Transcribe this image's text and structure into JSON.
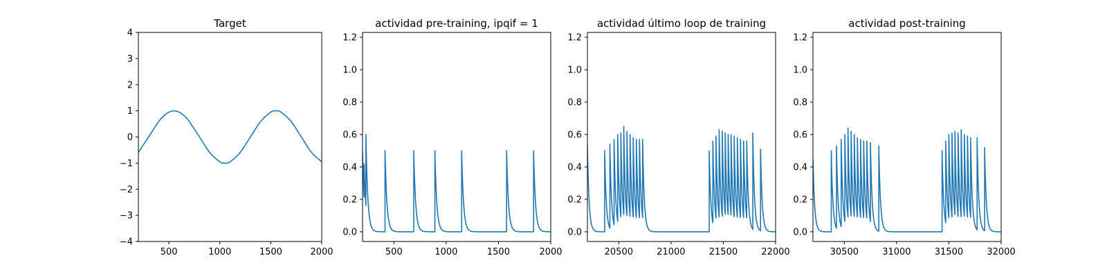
{
  "chart_data": [
    {
      "type": "line",
      "title": "Target",
      "xlabel": "",
      "ylabel": "",
      "xlim": [
        200,
        2000
      ],
      "ylim": [
        -4,
        4
      ],
      "xticks": [
        500,
        1000,
        1500,
        2000
      ],
      "xtick_labels": [
        "500",
        "1000",
        "1500",
        "2000"
      ],
      "yticks": [
        -4,
        -3,
        -2,
        -1,
        0,
        1,
        2,
        3,
        4
      ],
      "ytick_labels": [
        "−4",
        "−3",
        "−2",
        "−1",
        "0",
        "1",
        "2",
        "3",
        "4"
      ],
      "grid": false,
      "series": [
        {
          "color": "#1f77b4",
          "x": [
            200,
            300,
            400,
            450,
            500,
            550,
            600,
            650,
            700,
            800,
            900,
            1000,
            1050,
            1100,
            1200,
            1300,
            1400,
            1500,
            1550,
            1600,
            1700,
            1800,
            1900,
            2000
          ],
          "y": [
            -0.59,
            0.0,
            0.59,
            0.81,
            0.95,
            1.0,
            0.95,
            0.81,
            0.59,
            0.0,
            -0.59,
            -0.95,
            -1.0,
            -0.95,
            -0.59,
            0.0,
            0.59,
            0.95,
            1.0,
            0.95,
            0.59,
            0.0,
            -0.59,
            -0.95
          ]
        }
      ]
    },
    {
      "type": "line",
      "title": "actividad pre-training, ipqif = 1",
      "xlabel": "",
      "ylabel": "",
      "xlim": [
        200,
        2000
      ],
      "ylim": [
        -0.06,
        1.23
      ],
      "xticks": [
        500,
        1000,
        1500,
        2000
      ],
      "xtick_labels": [
        "500",
        "1000",
        "1500",
        "2000"
      ],
      "yticks": [
        0.0,
        0.2,
        0.4,
        0.6,
        0.8,
        1.0,
        1.2
      ],
      "ytick_labels": [
        "0.0",
        "0.2",
        "0.4",
        "0.6",
        "0.8",
        "1.0",
        "1.2"
      ],
      "grid": false,
      "series": [
        {
          "color": "#1f77b4",
          "baseline_start": 0.52,
          "spikes": [
            {
              "t": 215,
              "a": 0.42
            },
            {
              "t": 232,
              "a": 0.6
            },
            {
              "t": 415,
              "a": 0.5
            },
            {
              "t": 690,
              "a": 0.5
            },
            {
              "t": 892,
              "a": 0.5
            },
            {
              "t": 1148,
              "a": 0.5
            },
            {
              "t": 1578,
              "a": 0.5
            },
            {
              "t": 1836,
              "a": 0.5
            }
          ],
          "decay": 18
        }
      ]
    },
    {
      "type": "line",
      "title": "actividad último loop de training",
      "xlabel": "",
      "ylabel": "",
      "xlim": [
        20200,
        22000
      ],
      "ylim": [
        -0.06,
        1.23
      ],
      "xticks": [
        20500,
        21000,
        21500,
        22000
      ],
      "xtick_labels": [
        "20500",
        "21000",
        "21500",
        "22000"
      ],
      "yticks": [
        0.0,
        0.2,
        0.4,
        0.6,
        0.8,
        1.0,
        1.2
      ],
      "ytick_labels": [
        "0.0",
        "0.2",
        "0.4",
        "0.6",
        "0.8",
        "1.0",
        "1.2"
      ],
      "grid": false,
      "series": [
        {
          "color": "#1f77b4",
          "baseline_start": 0.57,
          "spikes": [
            {
              "t": 20365,
              "a": 0.5
            },
            {
              "t": 20415,
              "a": 0.54
            },
            {
              "t": 20455,
              "a": 0.57
            },
            {
              "t": 20490,
              "a": 0.6
            },
            {
              "t": 20520,
              "a": 0.61
            },
            {
              "t": 20548,
              "a": 0.65
            },
            {
              "t": 20578,
              "a": 0.62
            },
            {
              "t": 20608,
              "a": 0.6
            },
            {
              "t": 20638,
              "a": 0.58
            },
            {
              "t": 20668,
              "a": 0.57
            },
            {
              "t": 20698,
              "a": 0.57
            },
            {
              "t": 20728,
              "a": 0.57
            },
            {
              "t": 21365,
              "a": 0.5
            },
            {
              "t": 21400,
              "a": 0.56
            },
            {
              "t": 21430,
              "a": 0.59
            },
            {
              "t": 21460,
              "a": 0.63
            },
            {
              "t": 21490,
              "a": 0.62
            },
            {
              "t": 21518,
              "a": 0.61
            },
            {
              "t": 21546,
              "a": 0.6
            },
            {
              "t": 21574,
              "a": 0.6
            },
            {
              "t": 21604,
              "a": 0.59
            },
            {
              "t": 21634,
              "a": 0.58
            },
            {
              "t": 21664,
              "a": 0.57
            },
            {
              "t": 21694,
              "a": 0.56
            },
            {
              "t": 21724,
              "a": 0.56
            },
            {
              "t": 21782,
              "a": 0.61
            },
            {
              "t": 21856,
              "a": 0.51
            }
          ],
          "decay": 16
        }
      ]
    },
    {
      "type": "line",
      "title": "actividad post-training",
      "xlabel": "",
      "ylabel": "",
      "xlim": [
        30200,
        32000
      ],
      "ylim": [
        -0.06,
        1.23
      ],
      "xticks": [
        30500,
        31000,
        31500,
        32000
      ],
      "xtick_labels": [
        "30500",
        "31000",
        "31500",
        "32000"
      ],
      "yticks": [
        0.0,
        0.2,
        0.4,
        0.6,
        0.8,
        1.0,
        1.2
      ],
      "ytick_labels": [
        "0.0",
        "0.2",
        "0.4",
        "0.6",
        "0.8",
        "1.0",
        "1.2"
      ],
      "grid": false,
      "series": [
        {
          "color": "#1f77b4",
          "baseline_start": 0.48,
          "spikes": [
            {
              "t": 30375,
              "a": 0.5
            },
            {
              "t": 30425,
              "a": 0.53
            },
            {
              "t": 30470,
              "a": 0.57
            },
            {
              "t": 30505,
              "a": 0.6
            },
            {
              "t": 30535,
              "a": 0.64
            },
            {
              "t": 30565,
              "a": 0.62
            },
            {
              "t": 30595,
              "a": 0.6
            },
            {
              "t": 30625,
              "a": 0.58
            },
            {
              "t": 30655,
              "a": 0.57
            },
            {
              "t": 30685,
              "a": 0.56
            },
            {
              "t": 30715,
              "a": 0.56
            },
            {
              "t": 30750,
              "a": 0.55
            },
            {
              "t": 30830,
              "a": 0.53
            },
            {
              "t": 31435,
              "a": 0.5
            },
            {
              "t": 31470,
              "a": 0.56
            },
            {
              "t": 31500,
              "a": 0.6
            },
            {
              "t": 31530,
              "a": 0.61
            },
            {
              "t": 31558,
              "a": 0.62
            },
            {
              "t": 31588,
              "a": 0.61
            },
            {
              "t": 31618,
              "a": 0.63
            },
            {
              "t": 31648,
              "a": 0.6
            },
            {
              "t": 31678,
              "a": 0.59
            },
            {
              "t": 31708,
              "a": 0.58
            },
            {
              "t": 31770,
              "a": 0.58
            },
            {
              "t": 31842,
              "a": 0.52
            }
          ],
          "decay": 16
        }
      ]
    }
  ]
}
